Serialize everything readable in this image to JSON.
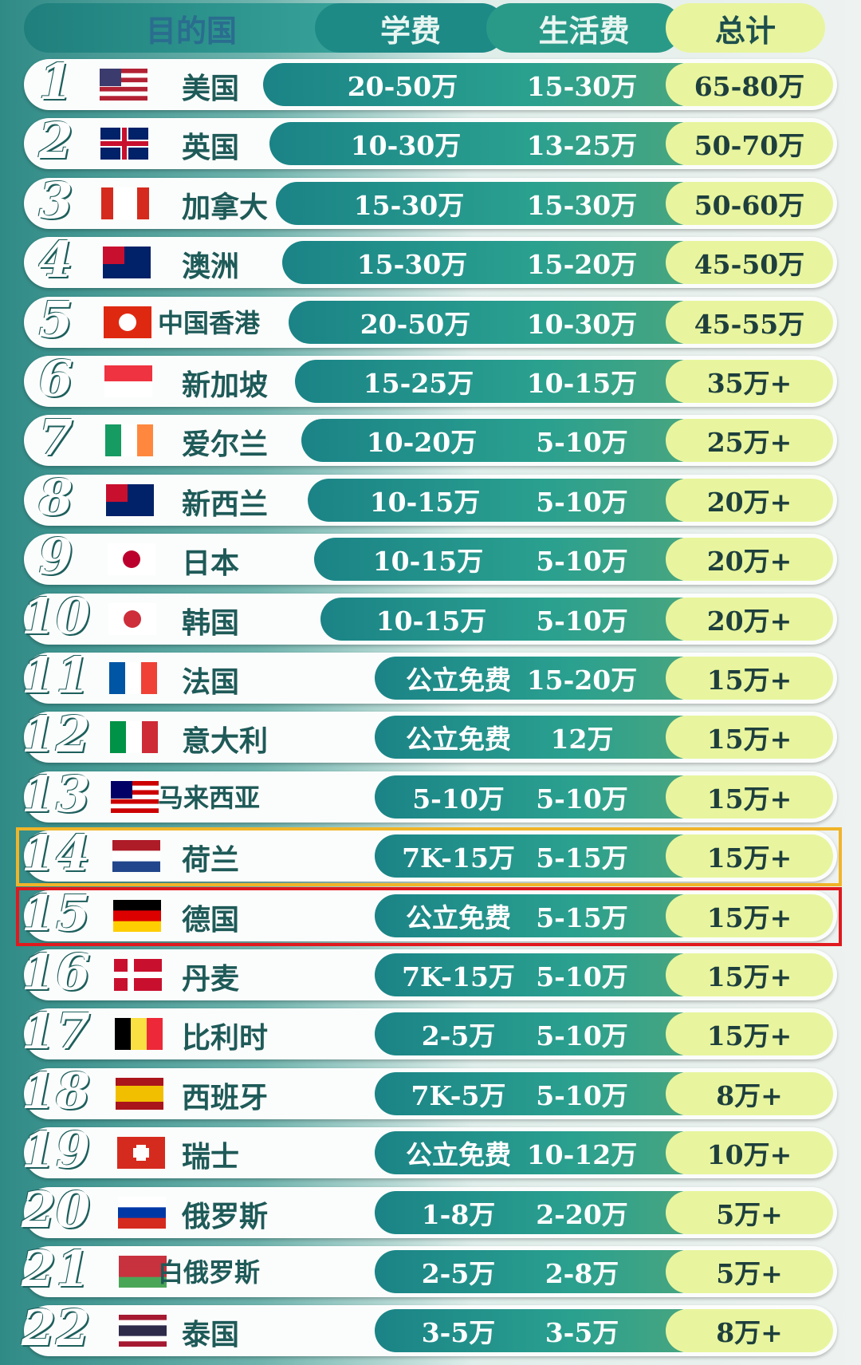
{
  "header": {
    "country": "目的国",
    "tuition": "学费",
    "living": "生活费",
    "total": "总计"
  },
  "table": {
    "rows": [
      [
        "1",
        "美国",
        "20-50万",
        "15-30万",
        "65-80万"
      ],
      [
        "2",
        "英国",
        "10-30万",
        "13-25万",
        "50-70万"
      ],
      [
        "3",
        "加拿大",
        "15-30万",
        "15-30万",
        "50-60万"
      ],
      [
        "4",
        "澳洲",
        "15-30万",
        "15-20万",
        "45-50万"
      ],
      [
        "5",
        "中国香港",
        "20-50万",
        "10-30万",
        "45-55万"
      ],
      [
        "6",
        "新加坡",
        "15-25万",
        "10-15万",
        "35万+"
      ],
      [
        "7",
        "爱尔兰",
        "10-20万",
        "5-10万",
        "25万+"
      ],
      [
        "8",
        "新西兰",
        "10-15万",
        "5-10万",
        "20万+"
      ],
      [
        "9",
        "日本",
        "10-15万",
        "5-10万",
        "20万+"
      ],
      [
        "10",
        "韩国",
        "10-15万",
        "5-10万",
        "20万+"
      ],
      [
        "11",
        "法国",
        "公立免费",
        "15-20万",
        "15万+"
      ],
      [
        "12",
        "意大利",
        "公立免费",
        "12万",
        "15万+"
      ],
      [
        "13",
        "马来西亚",
        "5-10万",
        "5-10万",
        "15万+"
      ],
      [
        "14",
        "荷兰",
        "7K-15万",
        "5-15万",
        "15万+"
      ],
      [
        "15",
        "德国",
        "公立免费",
        "5-15万",
        "15万+"
      ],
      [
        "16",
        "丹麦",
        "7K-15万",
        "5-10万",
        "15万+"
      ],
      [
        "17",
        "比利时",
        "2-5万",
        "5-10万",
        "15万+"
      ],
      [
        "18",
        "西班牙",
        "7K-5万",
        "5-10万",
        "8万+"
      ],
      [
        "19",
        "瑞士",
        "公立免费",
        "10-12万",
        "10万+"
      ],
      [
        "20",
        "俄罗斯",
        "1-8万",
        "2-20万",
        "5万+"
      ],
      [
        "21",
        "白俄罗斯",
        "2-5万",
        "2-8万",
        "5万+"
      ],
      [
        "22",
        "泰国",
        "3-5万",
        "3-5万",
        "8万+"
      ]
    ]
  }
}
